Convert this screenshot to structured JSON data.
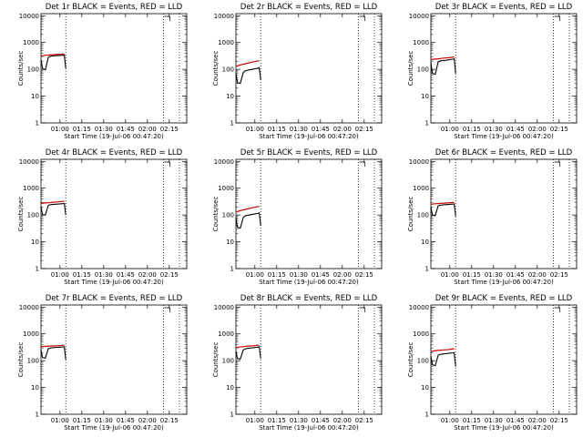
{
  "figure": {
    "background": "#ffffff",
    "events_color": "#000000",
    "lld_color": "#cc0000"
  },
  "chart_data": [
    {
      "type": "line",
      "title": "Det 1r BLACK = Events, RED = LLD",
      "xlabel": "Start Time (19-Jul-06 00:47:20)",
      "ylabel": "Counts/sec",
      "yscale": "log",
      "ylim": [
        1,
        12000
      ],
      "xlim": [
        "00:47",
        "02:27"
      ],
      "x_ticks": [
        "01:00",
        "01:15",
        "01:30",
        "01:45",
        "02:00",
        "02:15"
      ],
      "y_ticks": [
        "1",
        "10",
        "100",
        "1000",
        "10000"
      ],
      "vlines": [
        "01:04",
        "02:11",
        "02:22"
      ],
      "series": [
        {
          "name": "Events",
          "color": "#000000",
          "x": [
            "00:47",
            "00:48",
            "00:50",
            "00:52",
            "00:53",
            "00:54",
            "00:56",
            "00:58",
            "01:00",
            "01:02",
            "01:03",
            "01:04"
          ],
          "y": [
            230,
            110,
            95,
            280,
            300,
            310,
            320,
            325,
            330,
            335,
            340,
            110
          ]
        },
        {
          "name": "LLD",
          "color": "#cc0000",
          "x": [
            "00:47",
            "00:49",
            "00:51",
            "00:53",
            "00:55",
            "00:57",
            "00:59",
            "01:01",
            "01:03"
          ],
          "y": [
            320,
            330,
            340,
            345,
            350,
            360,
            365,
            370,
            380
          ]
        }
      ]
    },
    {
      "type": "line",
      "title": "Det 2r BLACK = Events, RED = LLD",
      "xlabel": "Start Time (19-Jul-06 00:47:20)",
      "ylabel": "Counts/sec",
      "yscale": "log",
      "ylim": [
        1,
        12000
      ],
      "xlim": [
        "00:47",
        "02:27"
      ],
      "x_ticks": [
        "01:00",
        "01:15",
        "01:30",
        "01:45",
        "02:00",
        "02:15"
      ],
      "y_ticks": [
        "1",
        "10",
        "100",
        "1000",
        "10000"
      ],
      "vlines": [
        "01:04",
        "02:11",
        "02:22"
      ],
      "series": [
        {
          "name": "Events",
          "color": "#000000",
          "x": [
            "00:47",
            "00:48",
            "00:50",
            "00:52",
            "00:53",
            "00:54",
            "00:56",
            "00:58",
            "01:00",
            "01:02",
            "01:03",
            "01:04"
          ],
          "y": [
            70,
            32,
            30,
            75,
            85,
            90,
            95,
            100,
            105,
            110,
            115,
            40
          ]
        },
        {
          "name": "LLD",
          "color": "#cc0000",
          "x": [
            "00:47",
            "00:49",
            "00:51",
            "00:53",
            "00:55",
            "00:57",
            "00:59",
            "01:01",
            "01:03"
          ],
          "y": [
            130,
            140,
            150,
            160,
            170,
            180,
            190,
            200,
            210
          ]
        }
      ]
    },
    {
      "type": "line",
      "title": "Det 3r BLACK = Events, RED = LLD",
      "xlabel": "Start Time (19-Jul-06 00:47:20)",
      "ylabel": "Counts/sec",
      "yscale": "log",
      "ylim": [
        1,
        12000
      ],
      "xlim": [
        "00:47",
        "02:27"
      ],
      "x_ticks": [
        "01:00",
        "01:15",
        "01:30",
        "01:45",
        "02:00",
        "02:15"
      ],
      "y_ticks": [
        "1",
        "10",
        "100",
        "1000",
        "10000"
      ],
      "vlines": [
        "01:04",
        "02:11",
        "02:22"
      ],
      "series": [
        {
          "name": "Events",
          "color": "#000000",
          "x": [
            "00:47",
            "00:48",
            "00:50",
            "00:52",
            "00:53",
            "00:54",
            "00:56",
            "00:58",
            "01:00",
            "01:02",
            "01:03",
            "01:04"
          ],
          "y": [
            180,
            70,
            65,
            190,
            200,
            210,
            215,
            220,
            230,
            240,
            250,
            70
          ]
        },
        {
          "name": "LLD",
          "color": "#cc0000",
          "x": [
            "00:47",
            "00:49",
            "00:51",
            "00:53",
            "00:55",
            "00:57",
            "00:59",
            "01:01",
            "01:03"
          ],
          "y": [
            230,
            240,
            245,
            250,
            260,
            265,
            270,
            280,
            290
          ]
        }
      ]
    },
    {
      "type": "line",
      "title": "Det 4r BLACK = Events, RED = LLD",
      "xlabel": "Start Time (19-Jul-06 00:47:20)",
      "ylabel": "Counts/sec",
      "yscale": "log",
      "ylim": [
        1,
        12000
      ],
      "xlim": [
        "00:47",
        "02:27"
      ],
      "x_ticks": [
        "01:00",
        "01:15",
        "01:30",
        "01:45",
        "02:00",
        "02:15"
      ],
      "y_ticks": [
        "1",
        "10",
        "100",
        "1000",
        "10000"
      ],
      "vlines": [
        "01:04",
        "02:11",
        "02:22"
      ],
      "series": [
        {
          "name": "Events",
          "color": "#000000",
          "x": [
            "00:47",
            "00:48",
            "00:50",
            "00:52",
            "00:53",
            "00:54",
            "00:56",
            "00:58",
            "01:00",
            "01:02",
            "01:03",
            "01:04"
          ],
          "y": [
            210,
            105,
            100,
            230,
            240,
            245,
            250,
            255,
            260,
            265,
            270,
            100
          ]
        },
        {
          "name": "LLD",
          "color": "#cc0000",
          "x": [
            "00:47",
            "00:49",
            "00:51",
            "00:53",
            "00:55",
            "00:57",
            "00:59",
            "01:01",
            "01:03"
          ],
          "y": [
            270,
            280,
            285,
            290,
            300,
            305,
            310,
            320,
            330
          ]
        }
      ]
    },
    {
      "type": "line",
      "title": "Det 5r BLACK = Events, RED = LLD",
      "xlabel": "Start Time (19-Jul-06 00:47:20)",
      "ylabel": "Counts/sec",
      "yscale": "log",
      "ylim": [
        1,
        12000
      ],
      "xlim": [
        "00:47",
        "02:27"
      ],
      "x_ticks": [
        "01:00",
        "01:15",
        "01:30",
        "01:45",
        "02:00",
        "02:15"
      ],
      "y_ticks": [
        "1",
        "10",
        "100",
        "1000",
        "10000"
      ],
      "vlines": [
        "01:04",
        "02:11",
        "02:22"
      ],
      "series": [
        {
          "name": "Events",
          "color": "#000000",
          "x": [
            "00:47",
            "00:48",
            "00:50",
            "00:52",
            "00:53",
            "00:54",
            "00:56",
            "00:58",
            "01:00",
            "01:02",
            "01:03",
            "01:04"
          ],
          "y": [
            80,
            35,
            32,
            80,
            90,
            95,
            100,
            105,
            110,
            115,
            120,
            40
          ]
        },
        {
          "name": "LLD",
          "color": "#cc0000",
          "x": [
            "00:47",
            "00:49",
            "00:51",
            "00:53",
            "00:55",
            "00:57",
            "00:59",
            "01:01",
            "01:03"
          ],
          "y": [
            130,
            140,
            150,
            160,
            170,
            180,
            190,
            200,
            210
          ]
        }
      ]
    },
    {
      "type": "line",
      "title": "Det 6r BLACK = Events, RED = LLD",
      "xlabel": "Start Time (19-Jul-06 00:47:20)",
      "ylabel": "Counts/sec",
      "yscale": "log",
      "ylim": [
        1,
        12000
      ],
      "xlim": [
        "00:47",
        "02:27"
      ],
      "x_ticks": [
        "01:00",
        "01:15",
        "01:30",
        "01:45",
        "02:00",
        "02:15"
      ],
      "y_ticks": [
        "1",
        "10",
        "100",
        "1000",
        "10000"
      ],
      "vlines": [
        "01:04",
        "02:11",
        "02:22"
      ],
      "series": [
        {
          "name": "Events",
          "color": "#000000",
          "x": [
            "00:47",
            "00:48",
            "00:50",
            "00:52",
            "00:53",
            "00:54",
            "00:56",
            "00:58",
            "01:00",
            "01:02",
            "01:03",
            "01:04"
          ],
          "y": [
            200,
            100,
            95,
            220,
            230,
            235,
            240,
            245,
            250,
            255,
            260,
            90
          ]
        },
        {
          "name": "LLD",
          "color": "#cc0000",
          "x": [
            "00:47",
            "00:49",
            "00:51",
            "00:53",
            "00:55",
            "00:57",
            "00:59",
            "01:01",
            "01:03"
          ],
          "y": [
            250,
            260,
            265,
            270,
            275,
            280,
            285,
            290,
            295
          ]
        }
      ]
    },
    {
      "type": "line",
      "title": "Det 7r BLACK = Events, RED = LLD",
      "xlabel": "Start Time (19-Jul-06 00:47:20)",
      "ylabel": "Counts/sec",
      "yscale": "log",
      "ylim": [
        1,
        12000
      ],
      "xlim": [
        "00:47",
        "02:27"
      ],
      "x_ticks": [
        "01:00",
        "01:15",
        "01:30",
        "01:45",
        "02:00",
        "02:15"
      ],
      "y_ticks": [
        "1",
        "10",
        "100",
        "1000",
        "10000"
      ],
      "vlines": [
        "01:04",
        "02:11",
        "02:22"
      ],
      "series": [
        {
          "name": "Events",
          "color": "#000000",
          "x": [
            "00:47",
            "00:48",
            "00:50",
            "00:52",
            "00:53",
            "00:54",
            "00:56",
            "00:58",
            "01:00",
            "01:02",
            "01:03",
            "01:04"
          ],
          "y": [
            250,
            130,
            125,
            280,
            290,
            300,
            310,
            315,
            320,
            325,
            330,
            110
          ]
        },
        {
          "name": "LLD",
          "color": "#cc0000",
          "x": [
            "00:47",
            "00:49",
            "00:51",
            "00:53",
            "00:55",
            "00:57",
            "00:59",
            "01:01",
            "01:03"
          ],
          "y": [
            330,
            340,
            345,
            350,
            355,
            360,
            365,
            370,
            380
          ]
        }
      ]
    },
    {
      "type": "line",
      "title": "Det 8r BLACK = Events, RED = LLD",
      "xlabel": "Start Time (19-Jul-06 00:47:20)",
      "ylabel": "Counts/sec",
      "yscale": "log",
      "ylim": [
        1,
        12000
      ],
      "xlim": [
        "00:47",
        "02:27"
      ],
      "x_ticks": [
        "01:00",
        "01:15",
        "01:30",
        "01:45",
        "02:00",
        "02:15"
      ],
      "y_ticks": [
        "1",
        "10",
        "100",
        "1000",
        "10000"
      ],
      "vlines": [
        "01:04",
        "02:11",
        "02:22"
      ],
      "series": [
        {
          "name": "Events",
          "color": "#000000",
          "x": [
            "00:47",
            "00:48",
            "00:50",
            "00:52",
            "00:53",
            "00:54",
            "00:56",
            "00:58",
            "01:00",
            "01:02",
            "01:03",
            "01:04"
          ],
          "y": [
            230,
            120,
            115,
            250,
            270,
            280,
            290,
            300,
            310,
            320,
            330,
            120
          ]
        },
        {
          "name": "LLD",
          "color": "#cc0000",
          "x": [
            "00:47",
            "00:49",
            "00:51",
            "00:53",
            "00:55",
            "00:57",
            "00:59",
            "01:01",
            "01:03"
          ],
          "y": [
            310,
            320,
            330,
            340,
            350,
            355,
            360,
            370,
            380
          ]
        }
      ]
    },
    {
      "type": "line",
      "title": "Det 9r BLACK = Events, RED = LLD",
      "xlabel": "Start Time (19-Jul-06 00:47:20)",
      "ylabel": "Counts/sec",
      "yscale": "log",
      "ylim": [
        1,
        12000
      ],
      "xlim": [
        "00:47",
        "02:27"
      ],
      "x_ticks": [
        "01:00",
        "01:15",
        "01:30",
        "01:45",
        "02:00",
        "02:15"
      ],
      "y_ticks": [
        "1",
        "10",
        "100",
        "1000",
        "10000"
      ],
      "vlines": [
        "01:04",
        "02:11",
        "02:22"
      ],
      "series": [
        {
          "name": "Events",
          "color": "#000000",
          "x": [
            "00:47",
            "00:48",
            "00:50",
            "00:52",
            "00:53",
            "00:54",
            "00:56",
            "00:58",
            "01:00",
            "01:02",
            "01:03",
            "01:04"
          ],
          "y": [
            150,
            70,
            65,
            160,
            170,
            175,
            180,
            185,
            190,
            195,
            200,
            60
          ]
        },
        {
          "name": "LLD",
          "color": "#cc0000",
          "x": [
            "00:47",
            "00:49",
            "00:51",
            "00:53",
            "00:55",
            "00:57",
            "00:59",
            "01:01",
            "01:03"
          ],
          "y": [
            220,
            230,
            240,
            245,
            250,
            255,
            260,
            270,
            280
          ]
        }
      ]
    }
  ]
}
